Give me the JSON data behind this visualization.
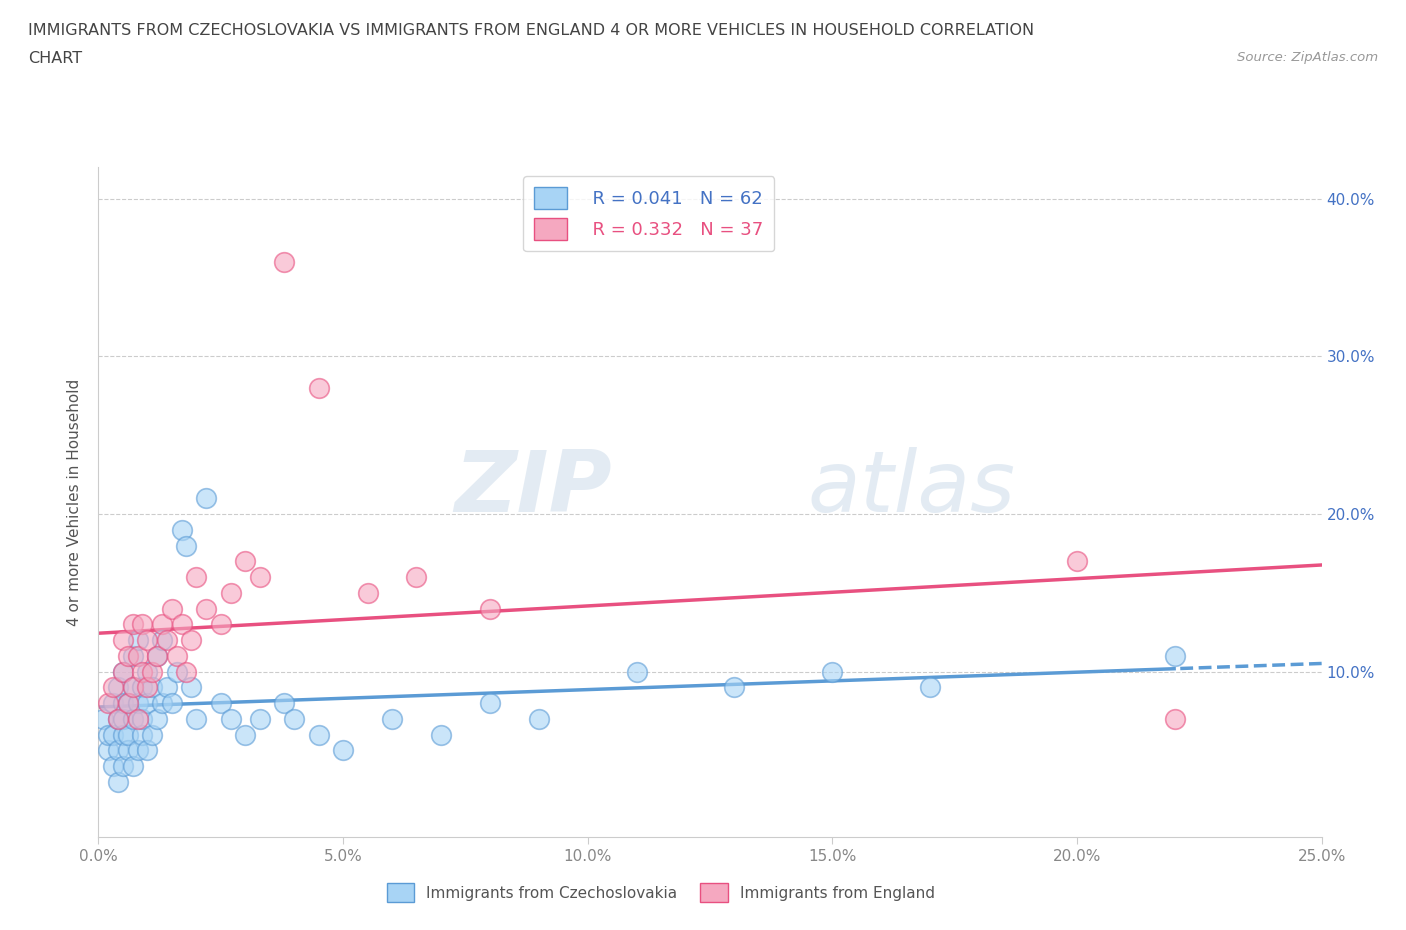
{
  "title_line1": "IMMIGRANTS FROM CZECHOSLOVAKIA VS IMMIGRANTS FROM ENGLAND 4 OR MORE VEHICLES IN HOUSEHOLD CORRELATION",
  "title_line2": "CHART",
  "source_text": "Source: ZipAtlas.com",
  "ylabel": "4 or more Vehicles in Household",
  "xlim": [
    0.0,
    0.25
  ],
  "ylim": [
    -0.005,
    0.42
  ],
  "xtick_labels": [
    "0.0%",
    "5.0%",
    "10.0%",
    "15.0%",
    "20.0%",
    "25.0%"
  ],
  "xtick_vals": [
    0.0,
    0.05,
    0.1,
    0.15,
    0.2,
    0.25
  ],
  "ytick_vals": [
    0.1,
    0.2,
    0.3,
    0.4
  ],
  "right_ytick_labels": [
    "10.0%",
    "20.0%",
    "30.0%",
    "40.0%"
  ],
  "right_ytick_vals": [
    0.1,
    0.2,
    0.3,
    0.4
  ],
  "color_czech": "#a8d4f5",
  "color_england": "#f5a8c0",
  "color_czech_line": "#5b9bd5",
  "color_england_line": "#e85080",
  "legend_r_czech": "R = 0.041",
  "legend_n_czech": "N = 62",
  "legend_r_england": "R = 0.332",
  "legend_n_england": "N = 37",
  "watermark_zip": "ZIP",
  "watermark_atlas": "atlas",
  "czech_x": [
    0.001,
    0.002,
    0.002,
    0.003,
    0.003,
    0.003,
    0.004,
    0.004,
    0.004,
    0.004,
    0.005,
    0.005,
    0.005,
    0.005,
    0.005,
    0.006,
    0.006,
    0.006,
    0.007,
    0.007,
    0.007,
    0.007,
    0.008,
    0.008,
    0.008,
    0.009,
    0.009,
    0.009,
    0.01,
    0.01,
    0.01,
    0.011,
    0.011,
    0.012,
    0.012,
    0.013,
    0.013,
    0.014,
    0.015,
    0.016,
    0.017,
    0.018,
    0.019,
    0.02,
    0.022,
    0.025,
    0.027,
    0.03,
    0.033,
    0.038,
    0.04,
    0.045,
    0.05,
    0.06,
    0.07,
    0.08,
    0.09,
    0.11,
    0.13,
    0.15,
    0.17,
    0.22
  ],
  "czech_y": [
    0.07,
    0.05,
    0.06,
    0.04,
    0.06,
    0.08,
    0.03,
    0.05,
    0.07,
    0.09,
    0.04,
    0.06,
    0.08,
    0.1,
    0.07,
    0.05,
    0.08,
    0.06,
    0.04,
    0.07,
    0.09,
    0.11,
    0.05,
    0.08,
    0.12,
    0.06,
    0.09,
    0.07,
    0.05,
    0.08,
    0.1,
    0.06,
    0.09,
    0.07,
    0.11,
    0.08,
    0.12,
    0.09,
    0.08,
    0.1,
    0.19,
    0.18,
    0.09,
    0.07,
    0.21,
    0.08,
    0.07,
    0.06,
    0.07,
    0.08,
    0.07,
    0.06,
    0.05,
    0.07,
    0.06,
    0.08,
    0.07,
    0.1,
    0.09,
    0.1,
    0.09,
    0.11
  ],
  "england_x": [
    0.002,
    0.003,
    0.004,
    0.005,
    0.005,
    0.006,
    0.006,
    0.007,
    0.007,
    0.008,
    0.008,
    0.009,
    0.009,
    0.01,
    0.01,
    0.011,
    0.012,
    0.013,
    0.014,
    0.015,
    0.016,
    0.017,
    0.018,
    0.019,
    0.02,
    0.022,
    0.025,
    0.027,
    0.03,
    0.033,
    0.038,
    0.045,
    0.055,
    0.065,
    0.08,
    0.2,
    0.22
  ],
  "england_y": [
    0.08,
    0.09,
    0.07,
    0.1,
    0.12,
    0.08,
    0.11,
    0.09,
    0.13,
    0.07,
    0.11,
    0.1,
    0.13,
    0.09,
    0.12,
    0.1,
    0.11,
    0.13,
    0.12,
    0.14,
    0.11,
    0.13,
    0.1,
    0.12,
    0.16,
    0.14,
    0.13,
    0.15,
    0.17,
    0.16,
    0.36,
    0.28,
    0.15,
    0.16,
    0.14,
    0.17,
    0.07
  ],
  "bg_color": "#FFFFFF",
  "grid_color": "#cccccc",
  "title_color": "#444444",
  "axis_color": "#888888"
}
